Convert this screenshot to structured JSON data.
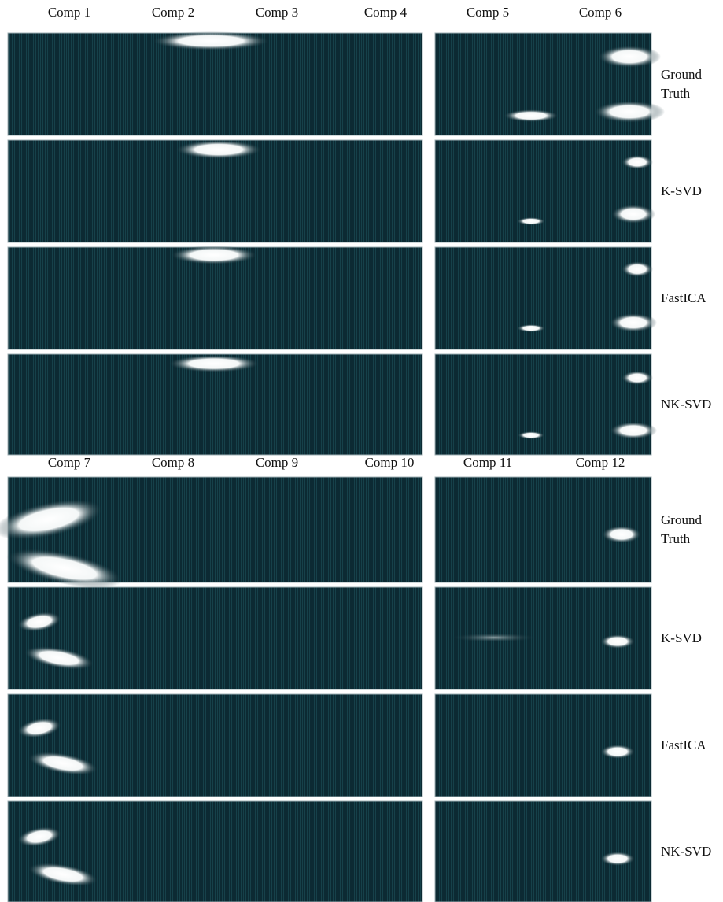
{
  "top": {
    "columns": [
      "Comp 1",
      "Comp 2",
      "Comp 3",
      "Comp 4",
      "Comp 5",
      "Comp 6"
    ],
    "rows": [
      "Ground Truth",
      "K-SVD",
      "FastICA",
      "NK-SVD"
    ]
  },
  "bottom": {
    "columns": [
      "Comp 7",
      "Comp 8",
      "Comp 9",
      "Comp 10",
      "Comp 11",
      "Comp 12"
    ],
    "rows": [
      "Ground Truth",
      "K-SVD",
      "FastICA",
      "NK-SVD"
    ]
  }
}
